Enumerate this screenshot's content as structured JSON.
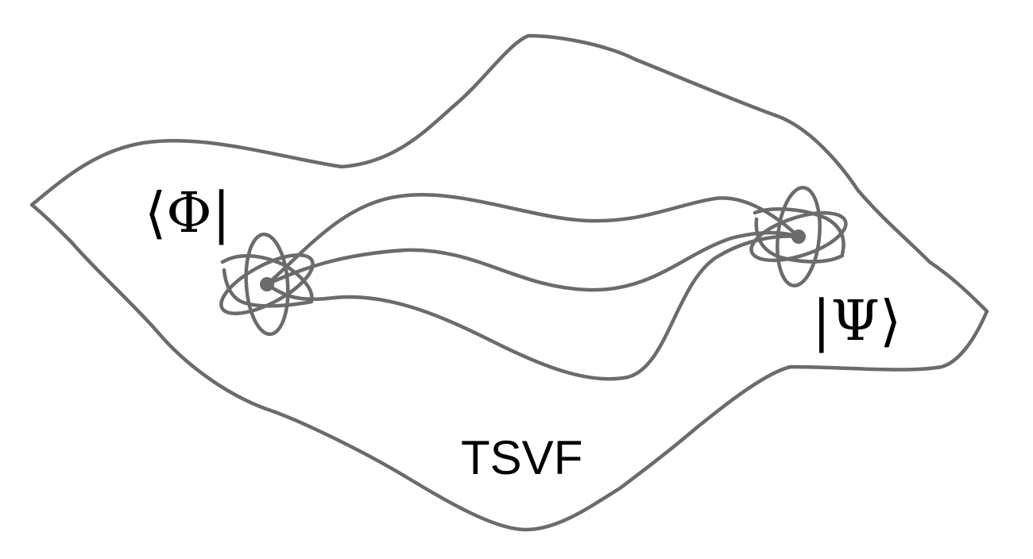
{
  "diagram": {
    "bra_label": "⟨Φ|",
    "ket_label": "|Ψ⟩",
    "region_label": "TSVF",
    "stroke_color": "#6b6b6b",
    "text_color": "#000000"
  }
}
